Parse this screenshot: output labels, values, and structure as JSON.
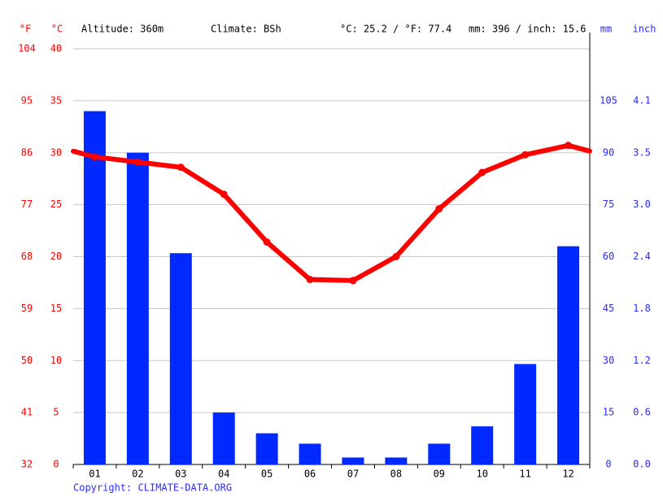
{
  "chart_data": {
    "type": "climate",
    "altitude": "Altitude: 360m",
    "climate": "Climate: BSh",
    "temperature_summary": "°C: 25.2 / °F: 77.4",
    "precipitation_summary": "mm: 396 / inch: 15.6",
    "copyright": "Copyright: CLIMATE-DATA.ORG",
    "categories": [
      "01",
      "02",
      "03",
      "04",
      "05",
      "06",
      "07",
      "08",
      "09",
      "10",
      "11",
      "12"
    ],
    "series": [
      {
        "color": "#0029ff",
        "axis": "y2",
        "values": [
          102,
          90,
          61,
          15,
          9,
          6,
          2,
          2,
          6,
          11,
          29,
          63
        ]
      },
      {
        "color": "#ff0000",
        "values": [
          29.6,
          29.1,
          28.6,
          26.0,
          21.4,
          17.8,
          17.7,
          20.0,
          24.6,
          28.1,
          29.8,
          30.7
        ]
      }
    ],
    "ylabel": "°C",
    "ylim": [
      0,
      40
    ],
    "yticks": [
      0,
      5,
      10,
      15,
      20,
      25,
      30,
      35,
      40
    ],
    "y3label": "°F",
    "y3lim": [
      32,
      104
    ],
    "y3ticks": [
      32,
      41,
      50,
      59,
      68,
      77,
      86,
      95,
      104
    ],
    "y2label": "mm",
    "y2lim": [
      0,
      120
    ],
    "y2ticks": [
      0,
      15,
      30,
      45,
      60,
      75,
      90,
      105
    ],
    "y4label": "inch",
    "y4lim": [
      0,
      4.724
    ],
    "y4ticks": [
      {
        "value": 0,
        "label": "0.0"
      },
      {
        "value": 0.591,
        "label": "0.6"
      },
      {
        "value": 1.181,
        "label": "1.2"
      },
      {
        "value": 1.772,
        "label": "1.8"
      },
      {
        "value": 2.362,
        "label": "2.4"
      },
      {
        "value": 2.953,
        "label": "3.0"
      },
      {
        "value": 3.543,
        "label": "3.5"
      },
      {
        "value": 4.134,
        "label": "4.1"
      }
    ],
    "grid": true
  }
}
